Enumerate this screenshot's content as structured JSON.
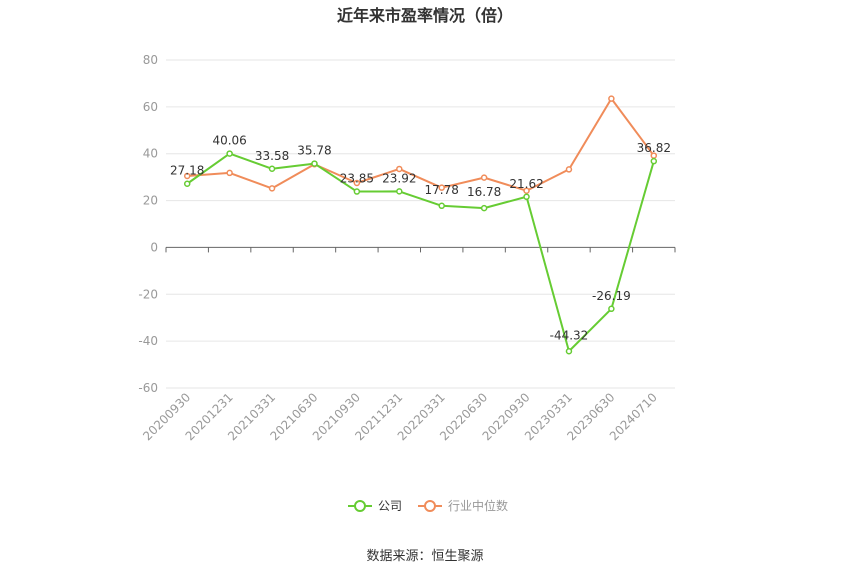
{
  "chart_data": {
    "type": "line",
    "title": "近年来市盈率情况（倍）",
    "source": "数据来源：恒生聚源",
    "x": [
      "20200930",
      "20201231",
      "20210331",
      "20210630",
      "20210930",
      "20211231",
      "20220331",
      "20220630",
      "20220930",
      "20230331",
      "20230630",
      "20240710"
    ],
    "ylim": [
      -60,
      80
    ],
    "yticks": [
      80,
      60,
      40,
      20,
      0,
      -20,
      -40,
      -60
    ],
    "grid": true,
    "legend": "bottom-center",
    "series": [
      {
        "name": "公司",
        "color": "#66cc33",
        "values": [
          27.18,
          40.06,
          33.58,
          35.78,
          23.85,
          23.92,
          17.78,
          16.78,
          21.62,
          -44.32,
          -26.19,
          36.82
        ],
        "labels": [
          "27.18",
          "40.06",
          "33.58",
          "35.78",
          "23.85",
          "23.92",
          "17.78",
          "16.78",
          "21.62",
          "-44.32",
          "-26.19",
          "36.82"
        ]
      },
      {
        "name": "行业中位数",
        "color": "#f08c5a",
        "values": [
          30.5,
          31.8,
          25.2,
          35.5,
          27.5,
          33.5,
          25.5,
          29.8,
          24.2,
          33.3,
          63.5,
          39.2
        ]
      }
    ]
  }
}
